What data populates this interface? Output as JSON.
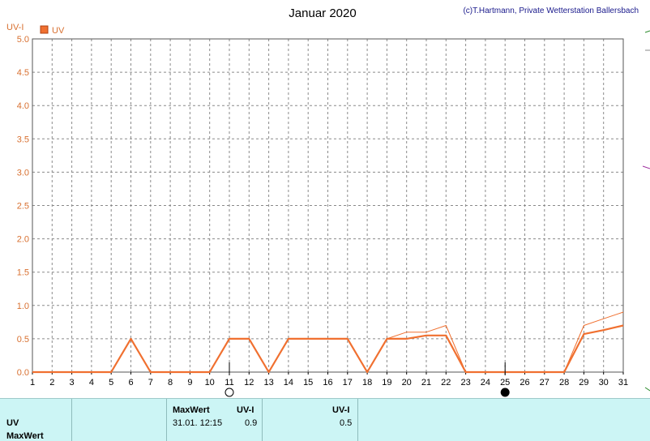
{
  "chart_data": {
    "type": "line",
    "title": "Januar 2020",
    "credit": "(c)T.Hartmann, Private Wetterstation Ballersbach",
    "ylabel": "UV-I",
    "xlabel": "",
    "ylim": [
      0,
      5
    ],
    "y_ticks": [
      "0.0",
      "0.5",
      "1.0",
      "1.5",
      "2.0",
      "2.5",
      "3.0",
      "3.5",
      "4.0",
      "4.5",
      "5.0"
    ],
    "x": [
      1,
      2,
      3,
      4,
      5,
      6,
      7,
      8,
      9,
      10,
      11,
      12,
      13,
      14,
      15,
      16,
      17,
      18,
      19,
      20,
      21,
      22,
      23,
      24,
      25,
      26,
      27,
      28,
      29,
      30,
      31
    ],
    "grid": true,
    "legend": "top-left",
    "series": [
      {
        "name": "UV",
        "color": "#f07030",
        "values": [
          0,
          0,
          0,
          0,
          0,
          0.5,
          0,
          0,
          0,
          0,
          0.5,
          0.5,
          0,
          0.5,
          0.5,
          0.5,
          0.5,
          0,
          0.5,
          0.5,
          0.55,
          0.55,
          0,
          0,
          0,
          0,
          0,
          0,
          0.57,
          0.63,
          0.7
        ]
      },
      {
        "name": "",
        "color": "#f07030",
        "values": [
          0,
          0,
          0,
          0,
          0,
          0.5,
          0,
          0,
          0,
          0,
          0.5,
          0.5,
          0,
          0.5,
          0.5,
          0.5,
          0.5,
          0,
          0.5,
          0.6,
          0.6,
          0.7,
          0,
          0,
          0,
          0,
          0,
          0,
          0.7,
          0.8,
          0.9
        ]
      }
    ],
    "moon_markers": [
      {
        "day": 11,
        "phase": "full-moon"
      },
      {
        "day": 25,
        "phase": "new-moon"
      }
    ]
  },
  "footer": {
    "row1_label": "UV",
    "row2_label": "MaxWert",
    "max_header": "MaxWert",
    "unit_header1": "UV-I",
    "max_datetime": "31.01.  12:15",
    "max_value": "0.9",
    "unit_header2": "UV-I",
    "second_value": "0.5"
  }
}
